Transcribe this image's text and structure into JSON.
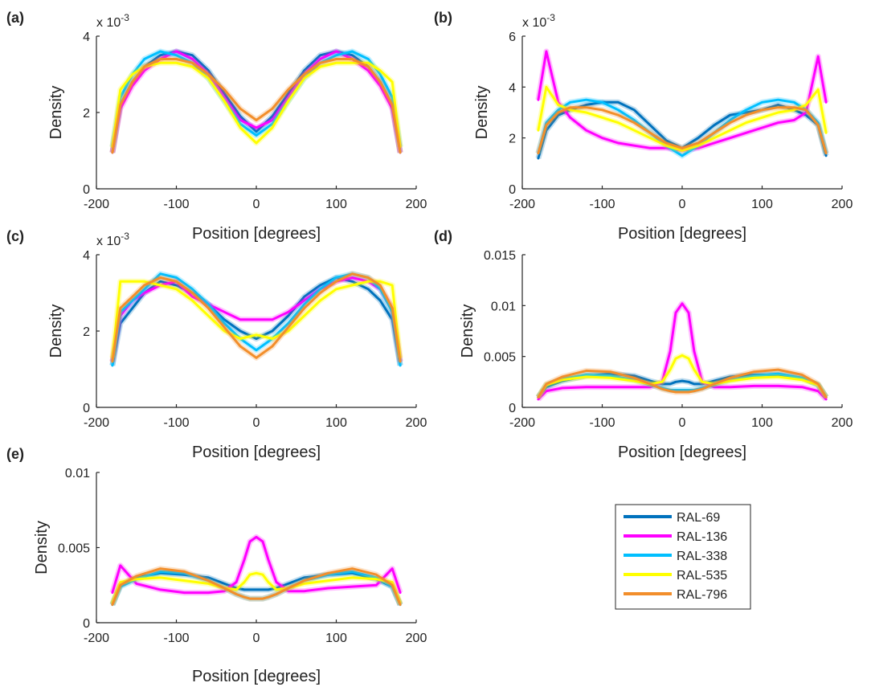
{
  "chart_data": [
    {
      "type": "line",
      "panel_label": "(a)",
      "xlabel": "Position [degrees]",
      "ylabel": "Density",
      "exponent_label": "x 10",
      "exponent_power": "-3",
      "xlim": [
        -200,
        200
      ],
      "ylim": [
        0,
        0.004
      ],
      "xticks": [
        -200,
        -100,
        0,
        100,
        200
      ],
      "xtick_labels": [
        "-200",
        "-100",
        "0",
        "100",
        "200"
      ],
      "yticks": [
        0,
        0.002,
        0.004
      ],
      "ytick_labels": [
        "0",
        "2",
        "4"
      ],
      "x": [
        -180,
        -170,
        -155,
        -140,
        -120,
        -100,
        -80,
        -60,
        -40,
        -20,
        0,
        20,
        40,
        60,
        80,
        100,
        120,
        140,
        155,
        170,
        180
      ],
      "series": [
        {
          "name": "RAL-69",
          "values": [
            0.00095,
            0.0022,
            0.0028,
            0.0032,
            0.0035,
            0.0036,
            0.0035,
            0.0031,
            0.0025,
            0.0019,
            0.0015,
            0.0019,
            0.0025,
            0.0031,
            0.0035,
            0.0036,
            0.0035,
            0.0032,
            0.0028,
            0.0022,
            0.00095
          ]
        },
        {
          "name": "RAL-136",
          "values": [
            0.00095,
            0.0021,
            0.0027,
            0.0031,
            0.0034,
            0.0036,
            0.0034,
            0.003,
            0.0024,
            0.0018,
            0.0016,
            0.0018,
            0.0024,
            0.003,
            0.0034,
            0.0036,
            0.0034,
            0.0031,
            0.0027,
            0.0021,
            0.00095
          ]
        },
        {
          "name": "RAL-338",
          "values": [
            0.0011,
            0.0024,
            0.003,
            0.0034,
            0.0036,
            0.0035,
            0.0033,
            0.0029,
            0.0023,
            0.0017,
            0.0014,
            0.0017,
            0.0023,
            0.0029,
            0.0033,
            0.0035,
            0.0036,
            0.0034,
            0.003,
            0.0024,
            0.0011
          ]
        },
        {
          "name": "RAL-535",
          "values": [
            0.0011,
            0.0026,
            0.003,
            0.0032,
            0.0033,
            0.0033,
            0.0032,
            0.0029,
            0.0023,
            0.0016,
            0.0012,
            0.0016,
            0.0023,
            0.0029,
            0.0032,
            0.0033,
            0.0033,
            0.0033,
            0.0031,
            0.0028,
            0.0011
          ]
        },
        {
          "name": "RAL-796",
          "values": [
            0.00095,
            0.0022,
            0.0028,
            0.0032,
            0.0034,
            0.0034,
            0.0033,
            0.003,
            0.0026,
            0.0021,
            0.0018,
            0.0021,
            0.0026,
            0.003,
            0.0033,
            0.0034,
            0.0034,
            0.0032,
            0.0028,
            0.0022,
            0.00095
          ]
        }
      ]
    },
    {
      "type": "line",
      "panel_label": "(b)",
      "xlabel": "Position [degrees]",
      "ylabel": "Density",
      "exponent_label": "x 10",
      "exponent_power": "-3",
      "xlim": [
        -200,
        200
      ],
      "ylim": [
        0,
        0.006
      ],
      "xticks": [
        -200,
        -100,
        0,
        100,
        200
      ],
      "xtick_labels": [
        "-200",
        "-100",
        "0",
        "100",
        "200"
      ],
      "yticks": [
        0,
        0.002,
        0.004,
        0.006
      ],
      "ytick_labels": [
        "0",
        "2",
        "4",
        "6"
      ],
      "x": [
        -180,
        -170,
        -155,
        -140,
        -120,
        -100,
        -80,
        -60,
        -40,
        -20,
        0,
        20,
        40,
        60,
        80,
        100,
        120,
        140,
        155,
        170,
        180
      ],
      "series": [
        {
          "name": "RAL-69",
          "values": [
            0.0012,
            0.0023,
            0.0029,
            0.0031,
            0.0033,
            0.0034,
            0.0034,
            0.0031,
            0.0025,
            0.0019,
            0.0016,
            0.002,
            0.0025,
            0.0029,
            0.003,
            0.0031,
            0.0033,
            0.0031,
            0.0029,
            0.0025,
            0.0013
          ]
        },
        {
          "name": "RAL-136",
          "values": [
            0.0035,
            0.0054,
            0.0034,
            0.0028,
            0.0023,
            0.002,
            0.0018,
            0.0017,
            0.0016,
            0.0016,
            0.0015,
            0.0016,
            0.0018,
            0.002,
            0.0022,
            0.0024,
            0.0026,
            0.0027,
            0.003,
            0.0052,
            0.0034
          ]
        },
        {
          "name": "RAL-338",
          "values": [
            0.0014,
            0.0026,
            0.0031,
            0.0034,
            0.0035,
            0.0034,
            0.0031,
            0.0027,
            0.0022,
            0.0017,
            0.0013,
            0.0017,
            0.0022,
            0.0027,
            0.0031,
            0.0034,
            0.0035,
            0.0034,
            0.0031,
            0.0026,
            0.0014
          ]
        },
        {
          "name": "RAL-535",
          "values": [
            0.0023,
            0.004,
            0.0033,
            0.0031,
            0.003,
            0.0028,
            0.0026,
            0.0023,
            0.002,
            0.0017,
            0.0015,
            0.0017,
            0.002,
            0.0023,
            0.0026,
            0.0028,
            0.003,
            0.0031,
            0.0033,
            0.0039,
            0.0022
          ]
        },
        {
          "name": "RAL-796",
          "values": [
            0.0014,
            0.0025,
            0.003,
            0.0032,
            0.0032,
            0.0031,
            0.0029,
            0.0026,
            0.0022,
            0.0018,
            0.0016,
            0.0018,
            0.0022,
            0.0026,
            0.0029,
            0.0031,
            0.0032,
            0.0032,
            0.0031,
            0.0025,
            0.0014
          ]
        }
      ]
    },
    {
      "type": "line",
      "panel_label": "(c)",
      "xlabel": "Position [degrees]",
      "ylabel": "Density",
      "exponent_label": "x 10",
      "exponent_power": "-3",
      "xlim": [
        -200,
        200
      ],
      "ylim": [
        0,
        0.004
      ],
      "xticks": [
        -200,
        -100,
        0,
        100,
        200
      ],
      "xtick_labels": [
        "-200",
        "-100",
        "0",
        "100",
        "200"
      ],
      "yticks": [
        0,
        0.002,
        0.004
      ],
      "ytick_labels": [
        "0",
        "2",
        "4"
      ],
      "x": [
        -180,
        -170,
        -155,
        -140,
        -120,
        -100,
        -80,
        -60,
        -40,
        -20,
        0,
        20,
        40,
        60,
        80,
        100,
        120,
        140,
        155,
        170,
        180
      ],
      "series": [
        {
          "name": "RAL-69",
          "values": [
            0.0011,
            0.0022,
            0.0026,
            0.003,
            0.0033,
            0.0032,
            0.003,
            0.0027,
            0.0023,
            0.002,
            0.0018,
            0.002,
            0.0024,
            0.0029,
            0.0032,
            0.0034,
            0.0033,
            0.0031,
            0.0028,
            0.0023,
            0.0011
          ]
        },
        {
          "name": "RAL-136",
          "values": [
            0.0012,
            0.0024,
            0.0028,
            0.003,
            0.0032,
            0.0033,
            0.0029,
            0.0027,
            0.0025,
            0.0023,
            0.0023,
            0.0023,
            0.0025,
            0.0028,
            0.0031,
            0.0033,
            0.0034,
            0.0033,
            0.0031,
            0.0026,
            0.0012
          ]
        },
        {
          "name": "RAL-338",
          "values": [
            0.0011,
            0.0025,
            0.0028,
            0.0031,
            0.0035,
            0.0034,
            0.0031,
            0.0027,
            0.0022,
            0.0018,
            0.0015,
            0.0018,
            0.0022,
            0.0027,
            0.0031,
            0.0034,
            0.0035,
            0.0034,
            0.0031,
            0.0025,
            0.0011
          ]
        },
        {
          "name": "RAL-535",
          "values": [
            0.0013,
            0.0033,
            0.0033,
            0.0033,
            0.0032,
            0.0031,
            0.0028,
            0.0024,
            0.002,
            0.0018,
            0.0019,
            0.0018,
            0.002,
            0.0024,
            0.0028,
            0.0031,
            0.0032,
            0.0033,
            0.0033,
            0.0032,
            0.0013
          ]
        },
        {
          "name": "RAL-796",
          "values": [
            0.0012,
            0.0026,
            0.0029,
            0.0032,
            0.0034,
            0.0033,
            0.003,
            0.0026,
            0.0021,
            0.0016,
            0.0013,
            0.0016,
            0.0021,
            0.0026,
            0.003,
            0.0033,
            0.0035,
            0.0034,
            0.0032,
            0.0026,
            0.0012
          ]
        }
      ]
    },
    {
      "type": "line",
      "panel_label": "(d)",
      "xlabel": "Position [degrees]",
      "ylabel": "Density",
      "xlim": [
        -200,
        200
      ],
      "ylim": [
        0,
        0.015
      ],
      "xticks": [
        -200,
        -100,
        0,
        100,
        200
      ],
      "xtick_labels": [
        "-200",
        "-100",
        "0",
        "100",
        "200"
      ],
      "yticks": [
        0,
        0.005,
        0.01,
        0.015
      ],
      "ytick_labels": [
        "0",
        "0.005",
        "0.01",
        "0.015"
      ],
      "x": [
        -180,
        -170,
        -150,
        -120,
        -90,
        -60,
        -40,
        -25,
        -15,
        -8,
        0,
        8,
        15,
        25,
        40,
        60,
        90,
        120,
        150,
        170,
        180
      ],
      "series": [
        {
          "name": "RAL-69",
          "values": [
            0.001,
            0.002,
            0.0026,
            0.0031,
            0.0033,
            0.0031,
            0.0026,
            0.0023,
            0.0023,
            0.0025,
            0.0026,
            0.0025,
            0.0023,
            0.0023,
            0.0026,
            0.003,
            0.0032,
            0.0032,
            0.0029,
            0.0022,
            0.001
          ]
        },
        {
          "name": "RAL-136",
          "values": [
            0.0008,
            0.0016,
            0.0019,
            0.002,
            0.002,
            0.002,
            0.002,
            0.0025,
            0.0055,
            0.0093,
            0.0102,
            0.0093,
            0.0055,
            0.0025,
            0.002,
            0.002,
            0.0021,
            0.0021,
            0.002,
            0.0016,
            0.0008
          ]
        },
        {
          "name": "RAL-338",
          "values": [
            0.001,
            0.0022,
            0.0028,
            0.0032,
            0.0031,
            0.0027,
            0.0022,
            0.0019,
            0.0017,
            0.0017,
            0.0017,
            0.0017,
            0.0017,
            0.0019,
            0.0022,
            0.0027,
            0.0031,
            0.0033,
            0.0029,
            0.0022,
            0.001
          ]
        },
        {
          "name": "RAL-535",
          "values": [
            0.001,
            0.0022,
            0.0027,
            0.003,
            0.0029,
            0.0026,
            0.0023,
            0.0025,
            0.0037,
            0.0048,
            0.0051,
            0.0048,
            0.0037,
            0.0025,
            0.0023,
            0.0026,
            0.0029,
            0.003,
            0.0027,
            0.0022,
            0.001
          ]
        },
        {
          "name": "RAL-796",
          "values": [
            0.001,
            0.0023,
            0.003,
            0.0036,
            0.0035,
            0.0029,
            0.0023,
            0.0018,
            0.0016,
            0.0015,
            0.0015,
            0.0015,
            0.0016,
            0.0018,
            0.0023,
            0.0029,
            0.0035,
            0.0037,
            0.0032,
            0.0023,
            0.001
          ]
        }
      ]
    },
    {
      "type": "line",
      "panel_label": "(e)",
      "xlabel": "Position [degrees]",
      "ylabel": "Density",
      "xlim": [
        -200,
        200
      ],
      "ylim": [
        0,
        0.01
      ],
      "xticks": [
        -200,
        -100,
        0,
        100,
        200
      ],
      "xtick_labels": [
        "-200",
        "-100",
        "0",
        "100",
        "200"
      ],
      "yticks": [
        0,
        0.005,
        0.01
      ],
      "ytick_labels": [
        "0",
        "0.005",
        "0.01"
      ],
      "x": [
        -180,
        -170,
        -150,
        -120,
        -90,
        -60,
        -40,
        -25,
        -15,
        -8,
        0,
        8,
        15,
        25,
        40,
        60,
        90,
        120,
        150,
        170,
        180
      ],
      "series": [
        {
          "name": "RAL-69",
          "values": [
            0.0012,
            0.0025,
            0.003,
            0.0033,
            0.0032,
            0.003,
            0.0026,
            0.0023,
            0.0022,
            0.0022,
            0.0022,
            0.0022,
            0.0022,
            0.0023,
            0.0026,
            0.003,
            0.0032,
            0.0033,
            0.0029,
            0.0024,
            0.0012
          ]
        },
        {
          "name": "RAL-136",
          "values": [
            0.002,
            0.0038,
            0.0026,
            0.0022,
            0.002,
            0.002,
            0.0021,
            0.0027,
            0.0042,
            0.0054,
            0.0057,
            0.0054,
            0.0042,
            0.0027,
            0.0021,
            0.0021,
            0.0023,
            0.0024,
            0.0025,
            0.0036,
            0.002
          ]
        },
        {
          "name": "RAL-338",
          "values": [
            0.0012,
            0.0024,
            0.0029,
            0.0034,
            0.0033,
            0.0028,
            0.0023,
            0.0019,
            0.0017,
            0.0016,
            0.0016,
            0.0016,
            0.0017,
            0.0019,
            0.0023,
            0.0028,
            0.0032,
            0.0034,
            0.003,
            0.0024,
            0.0012
          ]
        },
        {
          "name": "RAL-535",
          "values": [
            0.0013,
            0.0027,
            0.0029,
            0.003,
            0.0028,
            0.0026,
            0.0023,
            0.0022,
            0.0027,
            0.0032,
            0.0033,
            0.0032,
            0.0027,
            0.0022,
            0.0023,
            0.0026,
            0.0028,
            0.003,
            0.0029,
            0.0027,
            0.0013
          ]
        },
        {
          "name": "RAL-796",
          "values": [
            0.0012,
            0.0025,
            0.0031,
            0.0036,
            0.0034,
            0.0028,
            0.0023,
            0.0019,
            0.0017,
            0.0016,
            0.0016,
            0.0016,
            0.0017,
            0.0019,
            0.0023,
            0.0028,
            0.0033,
            0.0036,
            0.0032,
            0.0025,
            0.0012
          ]
        }
      ]
    }
  ],
  "legend": {
    "entries": [
      "RAL-69",
      "RAL-136",
      "RAL-338",
      "RAL-535",
      "RAL-796"
    ],
    "colors": [
      "#0072bd",
      "#ff00ff",
      "#00bfff",
      "#ffff00",
      "#f28e2b"
    ]
  }
}
